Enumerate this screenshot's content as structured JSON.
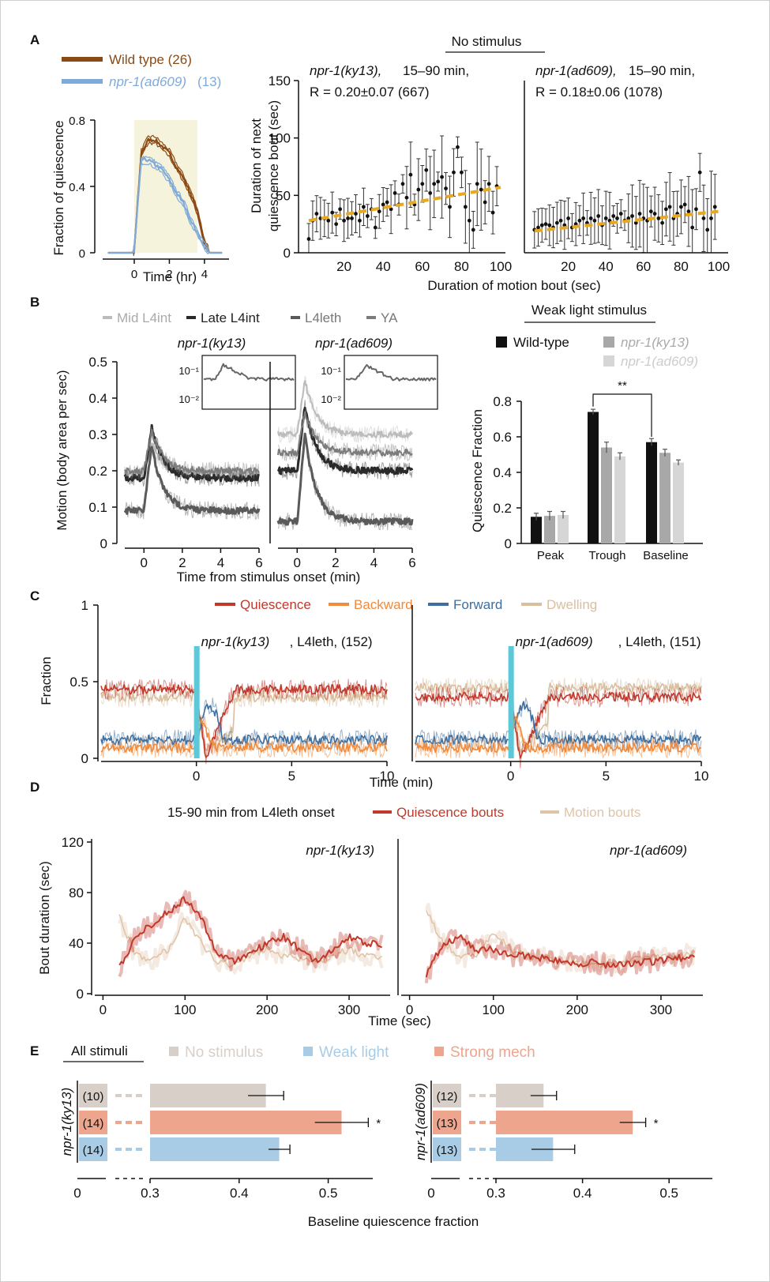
{
  "panels": {
    "A": "A",
    "B": "B",
    "C": "C",
    "D": "D",
    "E": "E"
  },
  "colors": {
    "wt": "#8b4a14",
    "ad609": "#7faad8",
    "yellow": "#e8a820",
    "shade": "#f5f3dc",
    "q": "#c0392b",
    "back": "#f08a3c",
    "fwd": "#3e6fa0",
    "dwell": "#d9bf9f",
    "cyan": "#5cc8d8",
    "mot": "#e0c4a8",
    "nostim": "#d8d0c8",
    "weak": "#a9cce6",
    "strong": "#eda58e",
    "g1": "#bcbcbc",
    "g2": "#2a2a2a",
    "g3": "#5a5a5a",
    "g4": "#7c7c7c"
  },
  "chart_data": [
    {
      "id": "A-left",
      "type": "line",
      "xlabel": "Time (hr)",
      "ylabel": "Fraction of quiescence",
      "xticks": [
        "0",
        "2",
        "4"
      ],
      "yticks": [
        "0",
        "0.4",
        "0.8"
      ],
      "ylim": [
        0,
        0.8
      ],
      "legend": [
        {
          "label": "Wild type (26)"
        },
        {
          "label_italic": "npr-1(ad609)",
          "label_suffix": " (13)"
        }
      ],
      "series": [
        {
          "name": "Wild type (26)",
          "x": [
            -1.5,
            -0.1,
            0,
            0.4,
            0.8,
            1.2,
            1.6,
            2.0,
            2.4,
            2.8,
            3.2,
            3.6,
            4.0,
            4.3,
            5.0
          ],
          "y": [
            0,
            0,
            0.02,
            0.6,
            0.68,
            0.68,
            0.64,
            0.6,
            0.52,
            0.45,
            0.36,
            0.25,
            0.06,
            0,
            0
          ]
        },
        {
          "name": "npr-1(ad609) (13)",
          "x": [
            -1.5,
            -0.1,
            0,
            0.4,
            0.8,
            1.2,
            1.6,
            2.0,
            2.4,
            2.8,
            3.2,
            3.6,
            4.0,
            4.3,
            5.0
          ],
          "y": [
            0,
            0,
            0.02,
            0.56,
            0.56,
            0.53,
            0.5,
            0.44,
            0.36,
            0.3,
            0.2,
            0.12,
            0.04,
            0,
            0
          ]
        }
      ]
    },
    {
      "id": "A-mid",
      "type": "scatter",
      "title": "No stimulus",
      "annotation_italic": "npr-1(ky13),",
      "annotation_rest": " 15–90 min,",
      "annotation_r": "R = 0.20±0.07 (667)",
      "ylabel_line1": "Duration of next",
      "ylabel_line2": "quiescence bout (sec)",
      "xticks": [
        "20",
        "40",
        "60",
        "80",
        "100"
      ],
      "yticks": [
        "0",
        "50",
        "100",
        "150"
      ],
      "ylim": [
        0,
        150
      ],
      "x": [
        2,
        4,
        6,
        8,
        10,
        12,
        14,
        16,
        18,
        20,
        22,
        24,
        26,
        28,
        30,
        32,
        34,
        36,
        38,
        40,
        42,
        44,
        46,
        48,
        50,
        52,
        54,
        56,
        58,
        60,
        62,
        64,
        66,
        68,
        70,
        72,
        74,
        76,
        78,
        80,
        82,
        84,
        86,
        88,
        90,
        92,
        94,
        96,
        98
      ],
      "y": [
        12,
        28,
        34,
        30,
        30,
        28,
        35,
        25,
        38,
        28,
        30,
        30,
        34,
        28,
        40,
        32,
        38,
        22,
        36,
        42,
        44,
        38,
        52,
        42,
        60,
        48,
        68,
        42,
        55,
        60,
        72,
        52,
        60,
        62,
        66,
        56,
        40,
        70,
        92,
        70,
        40,
        28,
        20,
        60,
        55,
        44,
        60,
        35,
        58
      ],
      "fit": {
        "x0": 2,
        "x1": 100,
        "y0": 28,
        "y1": 57
      }
    },
    {
      "id": "A-right",
      "type": "scatter",
      "annotation_italic": "npr-1(ad609),",
      "annotation_rest": " 15–90 min,",
      "annotation_r": "R = 0.18±0.06  (1078)",
      "xlabel": "Duration of motion bout (sec)",
      "xticks": [
        "20",
        "40",
        "60",
        "80",
        "100"
      ],
      "ylim": [
        0,
        150
      ],
      "x": [
        2,
        4,
        6,
        8,
        10,
        12,
        14,
        16,
        18,
        20,
        22,
        24,
        26,
        28,
        30,
        32,
        34,
        36,
        38,
        40,
        42,
        44,
        46,
        48,
        50,
        52,
        54,
        56,
        58,
        60,
        62,
        64,
        66,
        68,
        70,
        72,
        74,
        76,
        78,
        80,
        82,
        84,
        86,
        88,
        90,
        92,
        94,
        96,
        98
      ],
      "y": [
        20,
        22,
        24,
        25,
        24,
        22,
        26,
        28,
        24,
        30,
        22,
        25,
        28,
        30,
        26,
        30,
        28,
        32,
        24,
        30,
        28,
        32,
        30,
        34,
        28,
        30,
        32,
        26,
        34,
        30,
        28,
        36,
        34,
        30,
        26,
        38,
        40,
        30,
        34,
        40,
        42,
        36,
        22,
        38,
        70,
        30,
        20,
        30,
        40
      ],
      "fit": {
        "x0": 2,
        "x1": 100,
        "y0": 19,
        "y1": 36
      }
    },
    {
      "id": "B-left",
      "type": "line",
      "legend": [
        "Mid L4int",
        "Late L4int",
        "L4leth",
        "YA"
      ],
      "title_italic": "npr-1(ky13)",
      "ylabel": "Motion (body area per sec)",
      "xticks": [
        "0",
        "2",
        "4",
        "6"
      ],
      "yticks": [
        "0",
        "0.1",
        "0.2",
        "0.3",
        "0.4",
        "0.5"
      ],
      "ylim": [
        0,
        0.5
      ],
      "xlim": [
        -1,
        6
      ],
      "inset": {
        "yticks": [
          "10⁻¹",
          "10⁻²"
        ]
      },
      "series": [
        {
          "name": "Mid L4int",
          "baseline": 0.19,
          "peak": 0.28
        },
        {
          "name": "Late L4int",
          "baseline": 0.18,
          "peak": 0.32
        },
        {
          "name": "L4leth",
          "baseline": 0.09,
          "peak": 0.27
        },
        {
          "name": "YA",
          "baseline": 0.2,
          "peak": 0.31
        }
      ]
    },
    {
      "id": "B-mid",
      "type": "line",
      "title_italic": "npr-1(ad609)",
      "xlabel": "Time from stimulus onset (min)",
      "xticks": [
        "0",
        "2",
        "4",
        "6"
      ],
      "ylim": [
        0,
        0.5
      ],
      "xlim": [
        -1,
        6
      ],
      "inset": {
        "yticks": [
          "10⁻¹",
          "10⁻²"
        ]
      },
      "series": [
        {
          "name": "Mid L4int",
          "baseline": 0.3,
          "peak": 0.45
        },
        {
          "name": "Late L4int",
          "baseline": 0.2,
          "peak": 0.38
        },
        {
          "name": "L4leth",
          "baseline": 0.06,
          "peak": 0.3
        },
        {
          "name": "YA",
          "baseline": 0.25,
          "peak": 0.36
        }
      ]
    },
    {
      "id": "B-right",
      "type": "bar",
      "title": "Weak light stimulus",
      "legend": [
        {
          "label": "Wild-type"
        },
        {
          "label_italic": "npr-1(ky13)"
        },
        {
          "label_italic": "npr-1(ad609)"
        }
      ],
      "ylabel": "Quiescence Fraction",
      "categories": [
        "Peak",
        "Trough",
        "Baseline"
      ],
      "yticks": [
        "0",
        "0.2",
        "0.4",
        "0.6",
        "0.8"
      ],
      "ylim": [
        0,
        0.8
      ],
      "series": [
        {
          "name": "Wild-type",
          "values": [
            0.15,
            0.74,
            0.57
          ],
          "err": [
            0.02,
            0.015,
            0.02
          ]
        },
        {
          "name": "npr-1(ky13)",
          "values": [
            0.155,
            0.54,
            0.51
          ],
          "err": [
            0.025,
            0.03,
            0.02
          ]
        },
        {
          "name": "npr-1(ad609)",
          "values": [
            0.16,
            0.49,
            0.455
          ],
          "err": [
            0.02,
            0.02,
            0.015
          ]
        }
      ],
      "sig": "**"
    },
    {
      "id": "C-left",
      "type": "line",
      "legend": [
        "Quiescence",
        "Backward",
        "Forward",
        "Dwelling"
      ],
      "annotation_italic": "npr-1(ky13)",
      "annotation_rest": ", L4leth, (152)",
      "ylabel": "Fraction",
      "xticks": [
        "0",
        "5",
        "10"
      ],
      "yticks": [
        "0",
        "0.5",
        "1"
      ],
      "ylim": [
        0,
        1
      ],
      "xlim": [
        -5,
        10
      ],
      "series": [
        {
          "name": "Quiescence",
          "baseline": 0.45
        },
        {
          "name": "Dwelling",
          "baseline": 0.4
        },
        {
          "name": "Forward",
          "baseline": 0.12
        },
        {
          "name": "Backward",
          "baseline": 0.07
        }
      ]
    },
    {
      "id": "C-right",
      "type": "line",
      "annotation_italic": "npr-1(ad609)",
      "annotation_rest": ", L4leth, (151)",
      "xlabel": "Time (min)",
      "xticks": [
        "0",
        "5",
        "10"
      ],
      "ylim": [
        0,
        1
      ],
      "xlim": [
        -5,
        10
      ],
      "series": [
        {
          "name": "Quiescence",
          "baseline": 0.4
        },
        {
          "name": "Dwelling",
          "baseline": 0.46
        },
        {
          "name": "Forward",
          "baseline": 0.12
        },
        {
          "name": "Backward",
          "baseline": 0.07
        }
      ]
    },
    {
      "id": "D-left",
      "type": "line",
      "header": "15-90 min from L4leth onset",
      "legend": [
        "Quiescence bouts",
        "Motion bouts"
      ],
      "annotation_italic": "npr-1(ky13)",
      "ylabel": "Bout duration (sec)",
      "xticks": [
        "0",
        "100",
        "200",
        "300"
      ],
      "yticks": [
        "0",
        "40",
        "80",
        "120"
      ],
      "ylim": [
        0,
        120
      ],
      "xlim": [
        -10,
        350
      ],
      "series": [
        {
          "name": "Quiescence bouts",
          "x": [
            20,
            40,
            60,
            80,
            100,
            120,
            140,
            160,
            180,
            200,
            220,
            240,
            260,
            280,
            300,
            320,
            340
          ],
          "y": [
            20,
            45,
            55,
            65,
            75,
            60,
            30,
            25,
            32,
            40,
            45,
            35,
            25,
            35,
            45,
            40,
            38
          ]
        },
        {
          "name": "Motion bouts",
          "x": [
            20,
            40,
            60,
            80,
            100,
            120,
            140,
            160,
            180,
            200,
            220,
            240,
            260,
            280,
            300,
            320,
            340
          ],
          "y": [
            60,
            30,
            28,
            35,
            60,
            40,
            25,
            22,
            30,
            35,
            30,
            28,
            25,
            30,
            35,
            30,
            28
          ]
        }
      ]
    },
    {
      "id": "D-right",
      "type": "line",
      "annotation_italic": "npr-1(ad609)",
      "xlabel": "Time (sec)",
      "xticks": [
        "0",
        "100",
        "200",
        "300"
      ],
      "ylim": [
        0,
        120
      ],
      "xlim": [
        -10,
        350
      ],
      "series": [
        {
          "name": "Quiescence bouts",
          "x": [
            20,
            40,
            60,
            80,
            100,
            120,
            140,
            160,
            180,
            200,
            220,
            240,
            260,
            280,
            300,
            320,
            340
          ],
          "y": [
            15,
            40,
            45,
            35,
            35,
            30,
            30,
            28,
            26,
            24,
            25,
            22,
            24,
            25,
            26,
            28,
            30
          ]
        },
        {
          "name": "Motion bouts",
          "x": [
            20,
            40,
            60,
            80,
            100,
            120,
            140,
            160,
            180,
            200,
            220,
            240,
            260,
            280,
            300,
            320,
            340
          ],
          "y": [
            65,
            40,
            30,
            30,
            50,
            35,
            30,
            28,
            26,
            25,
            22,
            24,
            25,
            30,
            30,
            30,
            32
          ]
        }
      ]
    },
    {
      "id": "E-left",
      "type": "bar",
      "header": "All stimuli",
      "legend": [
        "No stimulus",
        "Weak light",
        "Strong mech"
      ],
      "rowlabel": "npr-1(ky13)",
      "categories": [
        "No stimulus",
        "Strong mech",
        "Weak light"
      ],
      "counts": [
        "(10)",
        "(14)",
        "(14)"
      ],
      "values": [
        0.43,
        0.515,
        0.445
      ],
      "err": [
        0.02,
        0.03,
        0.012
      ],
      "sig": [
        "",
        "*",
        ""
      ],
      "xticks": [
        "0",
        "0.3",
        "0.4",
        "0.5"
      ],
      "xlim": [
        0.3,
        0.55
      ]
    },
    {
      "id": "E-right",
      "type": "bar",
      "rowlabel": "npr-1(ad609)",
      "categories": [
        "No stimulus",
        "Strong mech",
        "Weak light"
      ],
      "counts": [
        "(12)",
        "(13)",
        "(13)"
      ],
      "values": [
        0.355,
        0.458,
        0.366
      ],
      "err": [
        0.015,
        0.015,
        0.025
      ],
      "sig": [
        "",
        "*",
        ""
      ],
      "xlabel": "Baseline quiescence fraction",
      "xticks": [
        "0",
        "0.3",
        "0.4",
        "0.5"
      ],
      "xlim": [
        0.3,
        0.55
      ]
    }
  ]
}
